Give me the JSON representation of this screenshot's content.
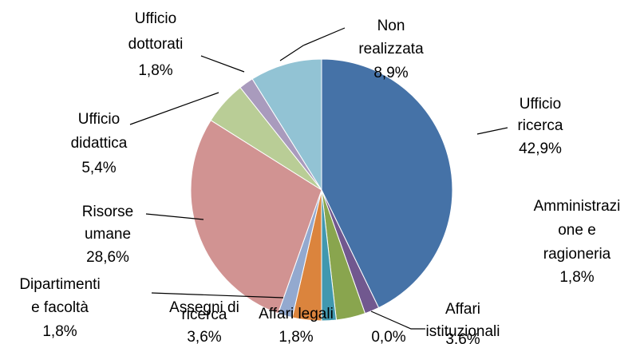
{
  "chart_data": {
    "type": "pie",
    "categories": [
      "Ufficio\nricerca",
      "Amministrazi\none e\nragioneria",
      "Affari\nistituzionali",
      "Affari legali",
      null,
      "Assegni di\nricerca",
      "Dipartimenti\ne facoltà",
      "Risorse\numane",
      "Ufficio\ndidattica",
      "Ufficio\ndottorati",
      "Non\nrealizzata"
    ],
    "values": [
      42.9,
      1.8,
      3.6,
      1.8,
      0,
      3.6,
      1.8,
      28.6,
      5.4,
      1.8,
      8.9
    ],
    "value_labels": [
      "42,9%",
      "1,8%",
      "3,6%",
      "1,8%",
      "0,0%",
      "3,6%",
      "1,8%",
      "28,6%",
      "5,4%",
      "1,8%",
      "8,9%"
    ],
    "colors": [
      "#4572a7",
      "#71588f",
      "#89a54e",
      "#4198af",
      "#8fb3d9",
      "#db843d",
      "#93a9cf",
      "#d19392",
      "#b9cd96",
      "#a99bbd",
      "#92c3d4"
    ]
  }
}
